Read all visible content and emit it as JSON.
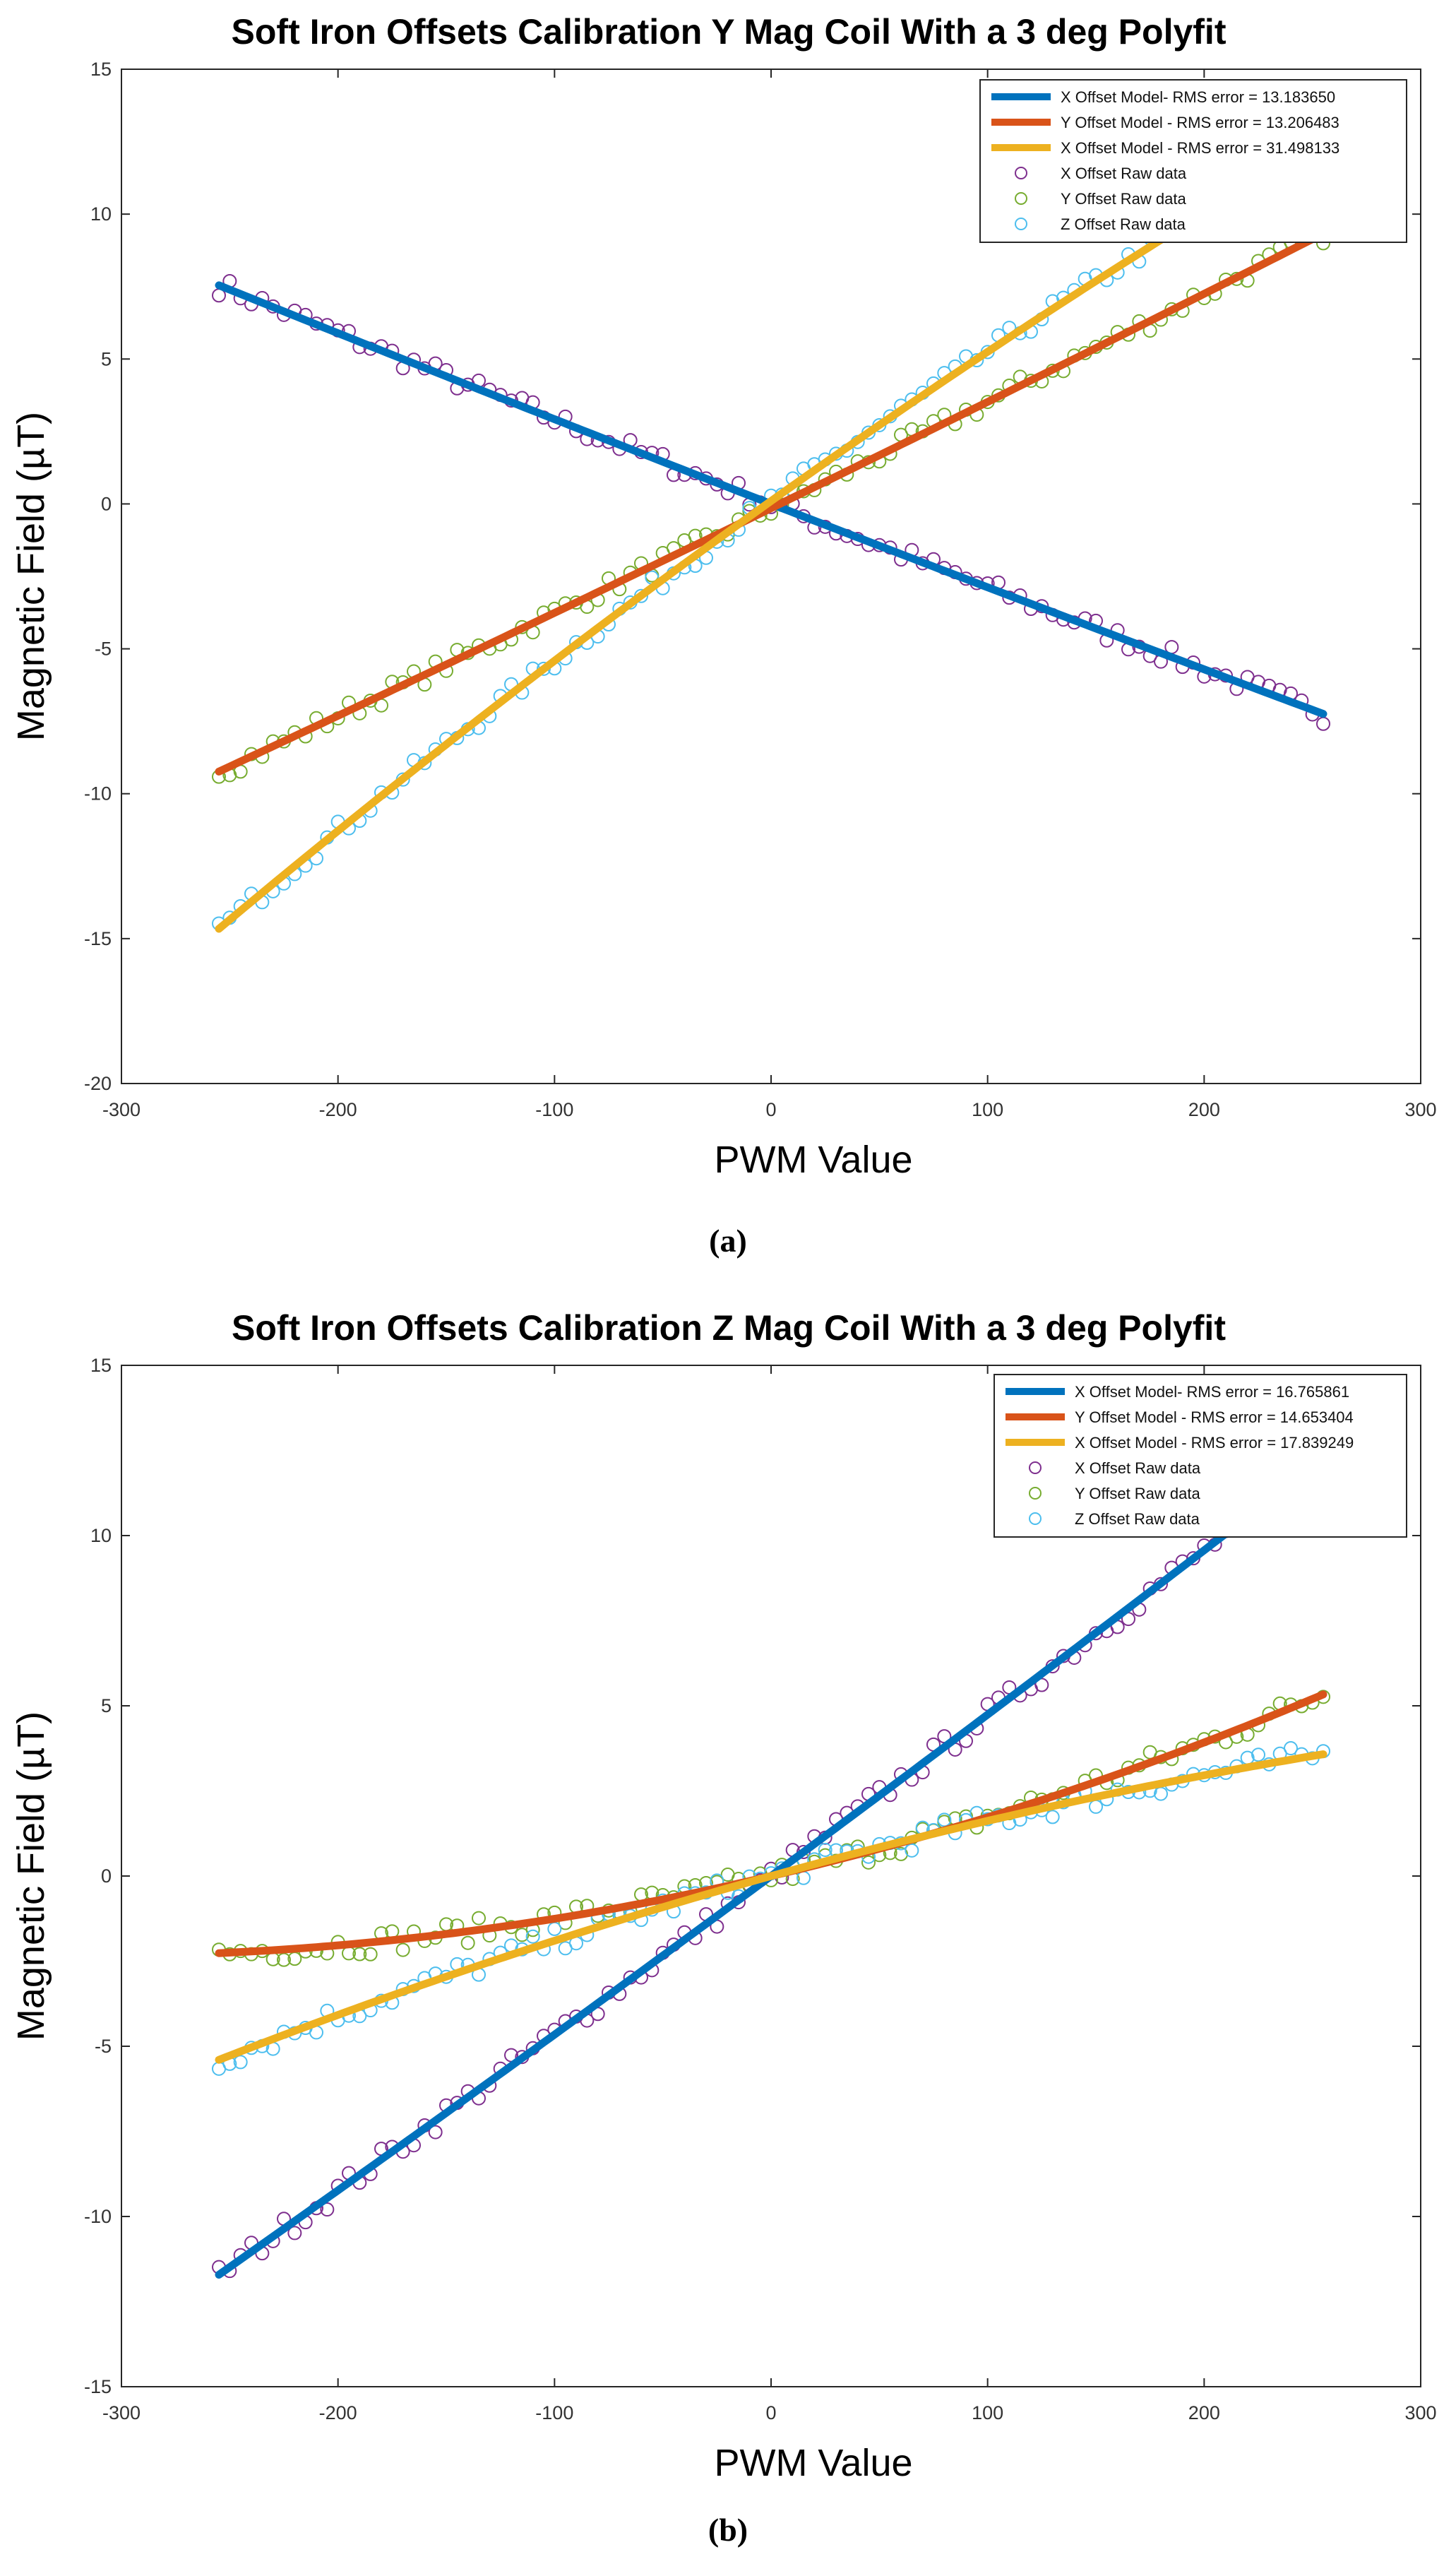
{
  "chart_data": [
    {
      "type": "line",
      "panel": "a",
      "title": "Soft Iron Offsets Calibration Y Mag Coil With a 3 deg Polyfit",
      "xlabel": "PWM Value",
      "ylabel": "Magnetic Field (µT)",
      "xlim": [
        -300,
        300
      ],
      "ylim": [
        -20,
        15
      ],
      "xticks": [
        -300,
        -200,
        -100,
        0,
        100,
        200,
        300
      ],
      "yticks": [
        -20,
        -15,
        -10,
        -5,
        0,
        5,
        10,
        15
      ],
      "legend_position": "top-right",
      "caption": "(a)",
      "colors": {
        "blue": "#0072BD",
        "orange": "#D95319",
        "yellow": "#EDB120",
        "purple": "#7E2F8E",
        "green": "#77AC30",
        "cyan": "#4DBEEE"
      },
      "series": [
        {
          "name": "X Offset Model- RMS error = 13.183650",
          "kind": "line",
          "color": "#0072BD",
          "coeffs": [
            0,
            2.3e-06,
            -0.029,
            0.0
          ]
        },
        {
          "name": "Y Offset Model - RMS error = 13.206483",
          "kind": "line",
          "color": "#D95319",
          "coeffs": [
            0,
            3e-06,
            0.0364,
            -0.15
          ]
        },
        {
          "name": "X Offset Model - RMS error = 31.498133",
          "kind": "line",
          "color": "#EDB120",
          "coeffs": [
            0,
            -1.8e-05,
            0.0533,
            0.1
          ]
        },
        {
          "name": "X Offset Raw data",
          "kind": "scatter",
          "color": "#7E2F8E",
          "fit": 0
        },
        {
          "name": "Y Offset Raw data",
          "kind": "scatter",
          "color": "#77AC30",
          "fit": 1
        },
        {
          "name": "Z Offset Raw data",
          "kind": "scatter",
          "color": "#4DBEEE",
          "fit": 2
        }
      ]
    },
    {
      "type": "line",
      "panel": "b",
      "title": "Soft Iron Offsets Calibration Z Mag Coil With a 3 deg Polyfit",
      "xlabel": "PWM Value",
      "ylabel": "Magnetic Field (µT)",
      "xlim": [
        -300,
        300
      ],
      "ylim": [
        -15,
        15
      ],
      "xticks": [
        -300,
        -200,
        -100,
        0,
        100,
        200,
        300
      ],
      "yticks": [
        -15,
        -10,
        -5,
        0,
        5,
        10,
        15
      ],
      "legend_position": "top-right",
      "caption": "(b)",
      "colors": {
        "blue": "#0072BD",
        "orange": "#D95319",
        "yellow": "#EDB120",
        "purple": "#7E2F8E",
        "green": "#77AC30",
        "cyan": "#4DBEEE"
      },
      "series": [
        {
          "name": "X Offset Model- RMS error = 16.765861",
          "kind": "line",
          "color": "#0072BD",
          "coeffs": [
            0,
            4.2e-06,
            0.047,
            0.0
          ]
        },
        {
          "name": "Y Offset Model - RMS error = 14.653404",
          "kind": "line",
          "color": "#D95319",
          "coeffs": [
            0,
            2.36e-05,
            0.0149,
            0.0
          ]
        },
        {
          "name": "X Offset Model - RMS error = 17.839249",
          "kind": "line",
          "color": "#EDB120",
          "coeffs": [
            0,
            -1.4e-05,
            0.0176,
            0.0
          ]
        },
        {
          "name": "X Offset Raw data",
          "kind": "scatter",
          "color": "#7E2F8E",
          "fit": 0
        },
        {
          "name": "Y Offset Raw data",
          "kind": "scatter",
          "color": "#77AC30",
          "fit": 1
        },
        {
          "name": "Z Offset Raw data",
          "kind": "scatter",
          "color": "#4DBEEE",
          "fit": 2
        }
      ]
    }
  ]
}
